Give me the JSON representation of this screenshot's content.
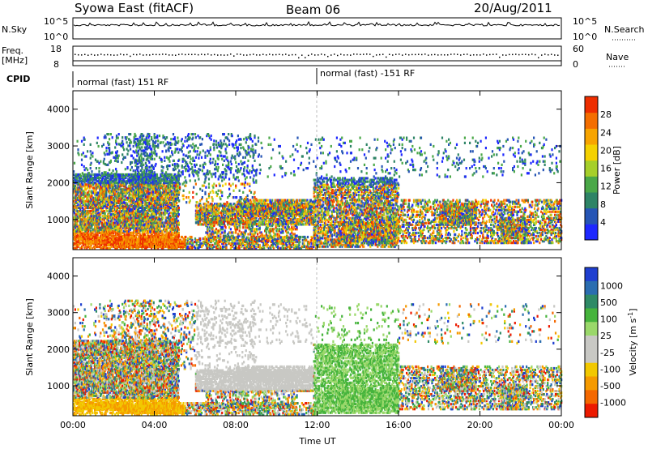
{
  "header": {
    "title": "Syowa East (fitACF)",
    "beam": "Beam 06",
    "date": "20/Aug/2011"
  },
  "top_panels": {
    "nsky_label": "N.Sky",
    "nsearch_label": "N.Search",
    "freq_label": "Freq.",
    "freq_unit": "[MHz]",
    "nave_label": "Nave",
    "cpid_label": "CPID",
    "left_tick_top": "10^5",
    "left_tick_bottom": "10^0",
    "right_tick_top": "10^5",
    "right_tick_bottom": "10^0",
    "freq_tick_top": "18",
    "freq_tick_bottom": "8",
    "nave_tick_top": "60",
    "nave_tick_bottom": "0",
    "cpid_first": "normal (fast) 151 RF",
    "cpid_second": "normal (fast) -151 RF"
  },
  "chart_data": [
    {
      "type": "heatmap",
      "title": "",
      "quantity": "Power",
      "xlabel": "",
      "ylabel": "Slant Range [km]",
      "x_ticks": [
        "00:00",
        "04:00",
        "08:00",
        "12:00",
        "16:00",
        "20:00",
        "00:00"
      ],
      "xlim_hours": [
        0,
        24
      ],
      "y_ticks": [
        "1000",
        "2000",
        "3000",
        "4000"
      ],
      "ylim": [
        180,
        4500
      ],
      "colorbar_label": "Power [dB]",
      "colorbar_ticks": [
        "4",
        "8",
        "12",
        "16",
        "20",
        "24",
        "28"
      ],
      "colorbar_range": [
        0,
        32
      ],
      "colorbar_colors": [
        "#1e28ff",
        "#2655b5",
        "#2e8466",
        "#4aa848",
        "#a6cf2a",
        "#f4d100",
        "#f7a400",
        "#f46e00",
        "#ee2e00"
      ]
    },
    {
      "type": "heatmap",
      "title": "",
      "quantity": "Velocity",
      "xlabel": "Time UT",
      "ylabel": "Slant Range [km]",
      "x_ticks": [
        "00:00",
        "04:00",
        "08:00",
        "12:00",
        "16:00",
        "20:00",
        "00:00"
      ],
      "xlim_hours": [
        0,
        24
      ],
      "y_ticks": [
        "1000",
        "2000",
        "3000",
        "4000"
      ],
      "ylim": [
        180,
        4500
      ],
      "colorbar_label": "Velocity [m s-1]",
      "colorbar_ticks": [
        "1000",
        "500",
        "100",
        "25",
        "-25",
        "-100",
        "-500",
        "-1000"
      ],
      "colorbar_colors": [
        "#1f3fd0",
        "#2a6db0",
        "#2e8a66",
        "#46b43c",
        "#9ad86a",
        "#c8c8c4",
        "#c8c8c4",
        "#f2c800",
        "#f59a00",
        "#f46800",
        "#ec1a00"
      ]
    }
  ]
}
